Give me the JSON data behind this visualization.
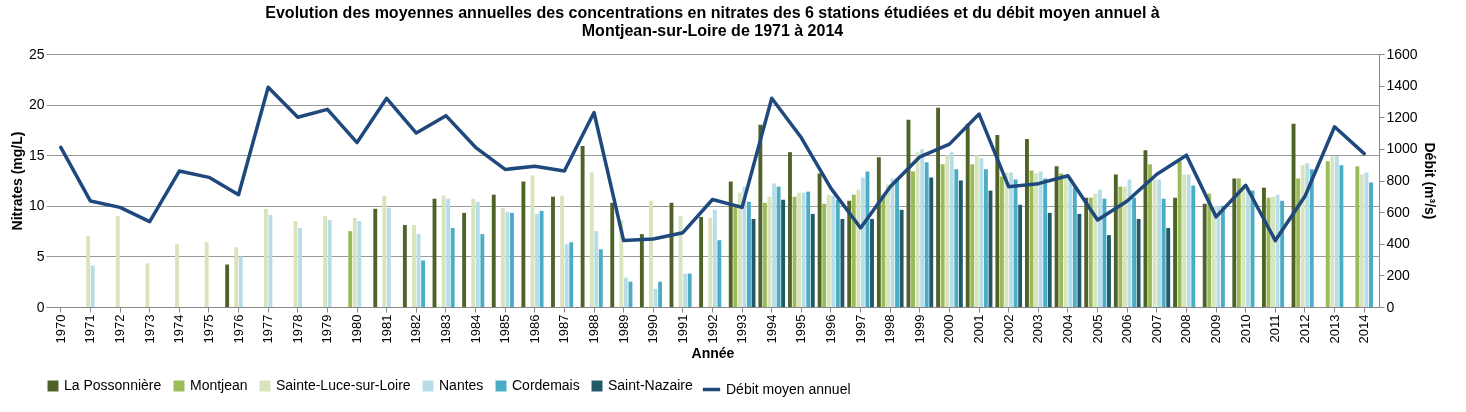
{
  "chart_data": {
    "type": "bar",
    "title": "Evolution des moyennes annuelles des concentrations  en nitrates des 6 stations étudiées et du débit moyen annuel à Montjean-sur-Loire de 1971 à 2014",
    "xlabel": "Année",
    "ylabel": "Nitrates (mg/L)",
    "y2label": "Débit (m³/s)",
    "categories": [
      "1970",
      "1971",
      "1972",
      "1973",
      "1974",
      "1975",
      "1976",
      "1977",
      "1978",
      "1979",
      "1980",
      "1981",
      "1982",
      "1983",
      "1984",
      "1985",
      "1986",
      "1987",
      "1988",
      "1989",
      "1990",
      "1991",
      "1992",
      "1993",
      "1994",
      "1995",
      "1996",
      "1997",
      "1998",
      "1999",
      "2000",
      "2001",
      "2002",
      "2003",
      "2004",
      "2005",
      "2006",
      "2007",
      "2008",
      "2009",
      "2010",
      "2011",
      "2012",
      "2013",
      "2014"
    ],
    "ylim": [
      0,
      25
    ],
    "yticks": [
      0,
      5,
      10,
      15,
      20,
      25
    ],
    "y2lim": [
      0,
      1600
    ],
    "y2ticks": [
      0,
      200,
      400,
      600,
      800,
      1000,
      1200,
      1400,
      1600
    ],
    "grid": "y",
    "legend": "bottom",
    "series": [
      {
        "name": "La Possonnière",
        "color": "#4f6228",
        "values": [
          null,
          null,
          null,
          null,
          null,
          null,
          4.2,
          null,
          null,
          null,
          null,
          9.7,
          8.1,
          10.7,
          9.3,
          11.1,
          12.4,
          10.9,
          15.9,
          10.3,
          7.2,
          10.3,
          8.9,
          12.4,
          18.0,
          15.3,
          13.2,
          10.5,
          14.8,
          18.5,
          19.7,
          18.1,
          17.0,
          16.6,
          13.9,
          10.8,
          13.1,
          15.5,
          10.8,
          10.2,
          12.7,
          11.8,
          18.1,
          null,
          null
        ]
      },
      {
        "name": "Montjean",
        "color": "#9bbb59",
        "values": [
          null,
          null,
          null,
          null,
          null,
          null,
          null,
          null,
          null,
          null,
          7.5,
          null,
          null,
          null,
          null,
          null,
          null,
          null,
          null,
          null,
          null,
          null,
          null,
          10.1,
          10.3,
          10.9,
          10.2,
          11.1,
          11.1,
          13.4,
          14.1,
          14.1,
          12.9,
          13.5,
          13.2,
          10.8,
          11.9,
          14.1,
          14.4,
          11.2,
          12.7,
          10.8,
          12.7,
          14.4,
          13.9
        ]
      },
      {
        "name": "Sainte-Luce-sur-Loire",
        "color": "#d7e4bd",
        "values": [
          null,
          7.0,
          9.0,
          4.3,
          6.2,
          6.4,
          5.9,
          9.7,
          8.5,
          9.0,
          8.8,
          11.0,
          8.1,
          11.0,
          10.7,
          9.8,
          13.0,
          11.0,
          13.3,
          8.6,
          10.5,
          9.0,
          8.8,
          11.3,
          10.9,
          11.3,
          11.1,
          11.6,
          12.1,
          15.3,
          15.0,
          15.0,
          13.3,
          13.2,
          12.9,
          11.2,
          11.9,
          12.6,
          13.1,
          10.0,
          11.8,
          10.9,
          14.0,
          14.9,
          13.1
        ]
      },
      {
        "name": "Nantes",
        "color": "#b7dee8",
        "values": [
          null,
          4.1,
          null,
          null,
          null,
          null,
          5.0,
          9.1,
          7.8,
          8.6,
          8.5,
          9.8,
          7.2,
          10.7,
          10.4,
          9.4,
          9.2,
          6.2,
          7.5,
          2.9,
          1.8,
          3.3,
          9.6,
          11.9,
          12.2,
          11.3,
          11.0,
          12.8,
          12.7,
          15.6,
          15.3,
          14.7,
          13.3,
          13.4,
          12.8,
          11.6,
          12.6,
          12.6,
          13.1,
          10.0,
          11.8,
          11.1,
          14.2,
          14.9,
          13.3
        ]
      },
      {
        "name": "Cordemais",
        "color": "#4bacc6",
        "values": [
          null,
          null,
          null,
          null,
          null,
          null,
          null,
          null,
          null,
          null,
          null,
          null,
          4.6,
          7.8,
          7.2,
          9.3,
          9.5,
          6.4,
          5.7,
          2.5,
          2.5,
          3.3,
          6.6,
          10.4,
          11.9,
          11.4,
          10.6,
          13.4,
          12.7,
          14.3,
          13.6,
          13.6,
          12.6,
          12.7,
          11.8,
          10.7,
          10.8,
          10.7,
          12.0,
          10.0,
          11.5,
          10.5,
          13.6,
          14.0,
          12.3
        ]
      },
      {
        "name": "Saint-Nazaire",
        "color": "#215968",
        "values": [
          null,
          null,
          null,
          null,
          null,
          null,
          null,
          null,
          null,
          null,
          null,
          null,
          null,
          null,
          null,
          null,
          null,
          null,
          null,
          null,
          null,
          null,
          null,
          8.7,
          10.6,
          9.2,
          8.7,
          8.7,
          9.6,
          12.8,
          12.5,
          11.5,
          10.1,
          9.3,
          9.2,
          7.1,
          8.7,
          7.8,
          null,
          null,
          null,
          null,
          null,
          null,
          null
        ]
      },
      {
        "name": "Débit moyen annuel",
        "color": "#1f497d",
        "type": "line",
        "axis": "y2",
        "values": [
          1010,
          670,
          630,
          540,
          860,
          820,
          710,
          1390,
          1200,
          1250,
          1040,
          1320,
          1100,
          1210,
          1010,
          870,
          890,
          860,
          1230,
          420,
          430,
          470,
          680,
          630,
          1320,
          1070,
          750,
          500,
          760,
          950,
          1030,
          1220,
          760,
          780,
          830,
          550,
          670,
          840,
          960,
          570,
          770,
          420,
          700,
          1140,
          970
        ]
      }
    ]
  }
}
